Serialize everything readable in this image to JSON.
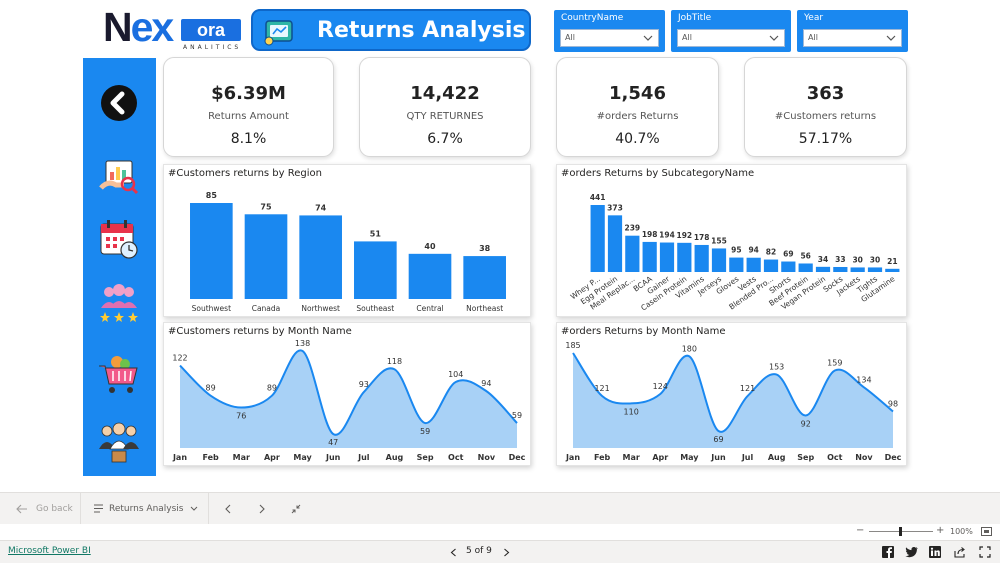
{
  "logo": {
    "part1": "N",
    "part2": "ex",
    "part3": "ora",
    "subtitle": "ANALITICS"
  },
  "header": {
    "title": "Returns Analysis"
  },
  "filters": [
    {
      "label": "CountryName",
      "value": "All"
    },
    {
      "label": "JobTitle",
      "value": "All"
    },
    {
      "label": "Year",
      "value": "All"
    }
  ],
  "sidebar": {
    "icons": [
      "back-arrow-icon",
      "report-analysis-icon",
      "calendar-clock-icon",
      "customers-rating-icon",
      "shopping-cart-icon",
      "team-icon"
    ]
  },
  "kpis": [
    {
      "value": "$6.39M",
      "label": "Returns Amount",
      "pct": "8.1%"
    },
    {
      "value": "14,422",
      "label": "QTY RETURNES",
      "pct": "6.7%"
    },
    {
      "value": "1,546",
      "label": "#orders Returns",
      "pct": "40.7%"
    },
    {
      "value": "363",
      "label": "#Customers returns",
      "pct": "57.17%"
    }
  ],
  "chart_data": [
    {
      "type": "bar",
      "title": "#Customers returns by Region",
      "categories": [
        "Southwest",
        "Canada",
        "Northwest",
        "Southeast",
        "Central",
        "Northeast"
      ],
      "values": [
        85,
        75,
        74,
        51,
        40,
        38
      ],
      "color": "#1a88f0"
    },
    {
      "type": "bar",
      "title": "#orders Returns by SubcategoryName",
      "categories": [
        "Whey P...",
        "Egg Protein",
        "Meal Replac...",
        "BCAA",
        "Gainer",
        "Casein Protein",
        "Vitamins",
        "Jerseys",
        "Gloves",
        "Vests",
        "Blended Pro...",
        "Shorts",
        "Beef Protein",
        "Vegan Protein",
        "Socks",
        "Jackets",
        "Tights",
        "Glutamine"
      ],
      "values": [
        441,
        373,
        239,
        198,
        194,
        192,
        178,
        155,
        95,
        94,
        82,
        69,
        56,
        34,
        33,
        30,
        30,
        21
      ],
      "color": "#1a88f0"
    },
    {
      "type": "area",
      "title": "#Customers returns by Month Name",
      "categories": [
        "Jan",
        "Feb",
        "Mar",
        "Apr",
        "May",
        "Jun",
        "Jul",
        "Aug",
        "Sep",
        "Oct",
        "Nov",
        "Dec"
      ],
      "values": [
        122,
        89,
        76,
        89,
        138,
        47,
        93,
        118,
        59,
        104,
        94,
        59
      ],
      "color": "#1a88f0"
    },
    {
      "type": "area",
      "title": "#orders Returns by Month Name",
      "categories": [
        "Jan",
        "Feb",
        "Mar",
        "Apr",
        "May",
        "Jun",
        "Jul",
        "Aug",
        "Sep",
        "Oct",
        "Nov",
        "Dec"
      ],
      "values": [
        185,
        121,
        110,
        124,
        180,
        69,
        121,
        153,
        92,
        159,
        134,
        98
      ],
      "color": "#1a88f0"
    }
  ],
  "bottom_bar": {
    "go_back": "Go back",
    "page_name": "Returns Analysis"
  },
  "zoom": {
    "level": "100%"
  },
  "status": {
    "app_link": "Microsoft Power BI",
    "pager": "5 of 9"
  }
}
